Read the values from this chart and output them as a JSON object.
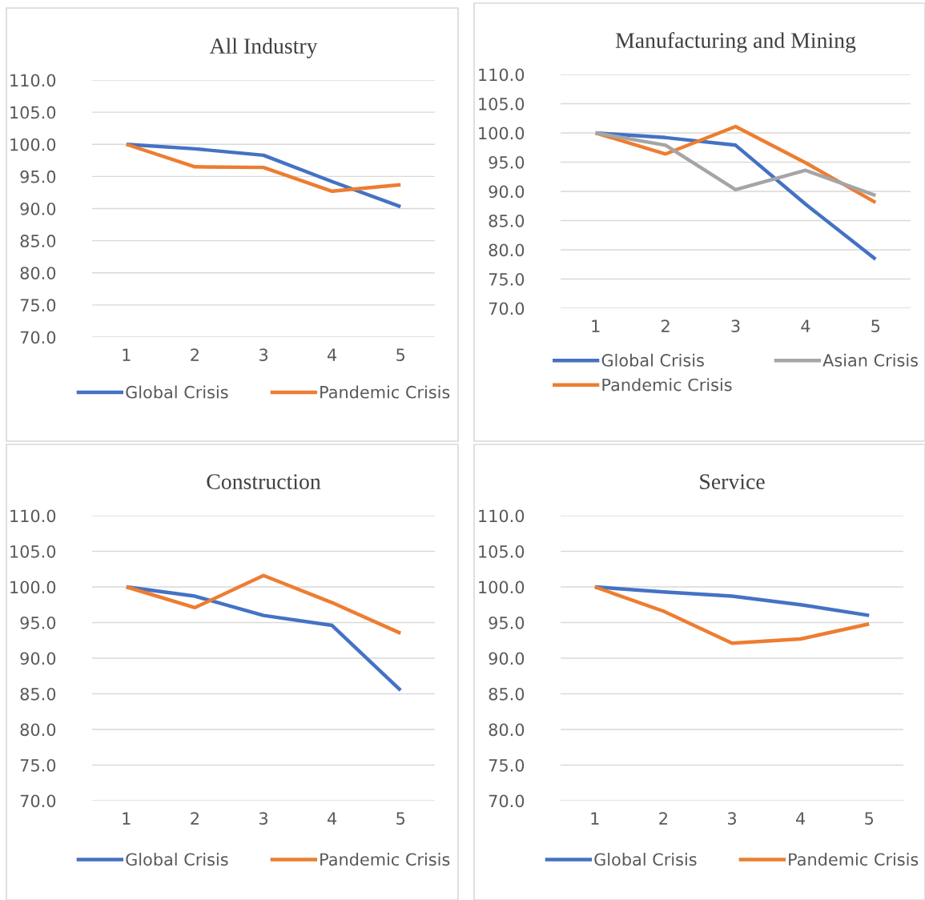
{
  "chart_data": [
    {
      "type": "line",
      "title": "All Industry",
      "categories": [
        "1",
        "2",
        "3",
        "4",
        "5"
      ],
      "ylim": [
        70,
        110
      ],
      "yticks": [
        {
          "value": 70,
          "label": "70.0"
        },
        {
          "value": 75,
          "label": "75.0"
        },
        {
          "value": 80,
          "label": "80.0"
        },
        {
          "value": 85,
          "label": "85.0"
        },
        {
          "value": 90,
          "label": "90.0"
        },
        {
          "value": 95,
          "label": "95.0"
        },
        {
          "value": 100,
          "label": "100.0"
        },
        {
          "value": 105,
          "label": "105.0"
        },
        {
          "value": 110,
          "label": "110.0"
        }
      ],
      "grid": "y",
      "legend": "bottom",
      "marker": "none",
      "line_style": "solid",
      "series": [
        {
          "name": "Global Crisis",
          "color": "#4472c4",
          "values": [
            100,
            99.3,
            98.3,
            94.2,
            90.3
          ]
        },
        {
          "name": "Pandemic Crisis",
          "color": "#ed7d31",
          "values": [
            100,
            96.5,
            96.4,
            92.7,
            93.7
          ]
        }
      ]
    },
    {
      "type": "line",
      "title": "Manufacturing and Mining",
      "categories": [
        "1",
        "2",
        "3",
        "4",
        "5"
      ],
      "ylim": [
        70,
        110
      ],
      "yticks": [
        {
          "value": 70,
          "label": "70.0"
        },
        {
          "value": 75,
          "label": "75.0"
        },
        {
          "value": 80,
          "label": "80.0"
        },
        {
          "value": 85,
          "label": "85.0"
        },
        {
          "value": 90,
          "label": "90.0"
        },
        {
          "value": 95,
          "label": "95.0"
        },
        {
          "value": 100,
          "label": "100.0"
        },
        {
          "value": 105,
          "label": "105.0"
        },
        {
          "value": 110,
          "label": "110.0"
        }
      ],
      "grid": "y",
      "legend": "bottom",
      "marker": "none",
      "line_style": "solid",
      "series": [
        {
          "name": "Global Crisis",
          "color": "#4472c4",
          "values": [
            100,
            99.2,
            97.9,
            87.8,
            78.4
          ]
        },
        {
          "name": "Pandemic Crisis",
          "color": "#ed7d31",
          "values": [
            100,
            96.4,
            101.1,
            94.9,
            88.1
          ]
        },
        {
          "name": "Asian Crisis",
          "color": "#a5a5a5",
          "values": [
            100,
            97.9,
            90.3,
            93.6,
            89.3
          ]
        }
      ]
    },
    {
      "type": "line",
      "title": "Construction",
      "categories": [
        "1",
        "2",
        "3",
        "4",
        "5"
      ],
      "ylim": [
        70,
        110
      ],
      "yticks": [
        {
          "value": 70,
          "label": "70.0"
        },
        {
          "value": 75,
          "label": "75.0"
        },
        {
          "value": 80,
          "label": "80.0"
        },
        {
          "value": 85,
          "label": "85.0"
        },
        {
          "value": 90,
          "label": "90.0"
        },
        {
          "value": 95,
          "label": "95.0"
        },
        {
          "value": 100,
          "label": "100.0"
        },
        {
          "value": 105,
          "label": "105.0"
        },
        {
          "value": 110,
          "label": "110.0"
        }
      ],
      "grid": "y",
      "legend": "bottom",
      "marker": "none",
      "line_style": "solid",
      "series": [
        {
          "name": "Global Crisis",
          "color": "#4472c4",
          "values": [
            100,
            98.7,
            96.0,
            94.6,
            85.5
          ]
        },
        {
          "name": "Pandemic Crisis",
          "color": "#ed7d31",
          "values": [
            100,
            97.1,
            101.6,
            97.8,
            93.5
          ]
        }
      ]
    },
    {
      "type": "line",
      "title": "Service",
      "categories": [
        "1",
        "2",
        "3",
        "4",
        "5"
      ],
      "ylim": [
        70,
        110
      ],
      "yticks": [
        {
          "value": 70,
          "label": "70.0"
        },
        {
          "value": 75,
          "label": "75.0"
        },
        {
          "value": 80,
          "label": "80.0"
        },
        {
          "value": 85,
          "label": "85.0"
        },
        {
          "value": 90,
          "label": "90.0"
        },
        {
          "value": 95,
          "label": "95.0"
        },
        {
          "value": 100,
          "label": "100.0"
        },
        {
          "value": 105,
          "label": "105.0"
        },
        {
          "value": 110,
          "label": "110.0"
        }
      ],
      "grid": "y",
      "legend": "bottom",
      "marker": "none",
      "line_style": "solid",
      "series": [
        {
          "name": "Global Crisis",
          "color": "#4472c4",
          "values": [
            100,
            99.3,
            98.7,
            97.5,
            96.0
          ]
        },
        {
          "name": "Pandemic Crisis",
          "color": "#ed7d31",
          "values": [
            100,
            96.6,
            92.1,
            92.7,
            94.8
          ]
        }
      ]
    }
  ]
}
